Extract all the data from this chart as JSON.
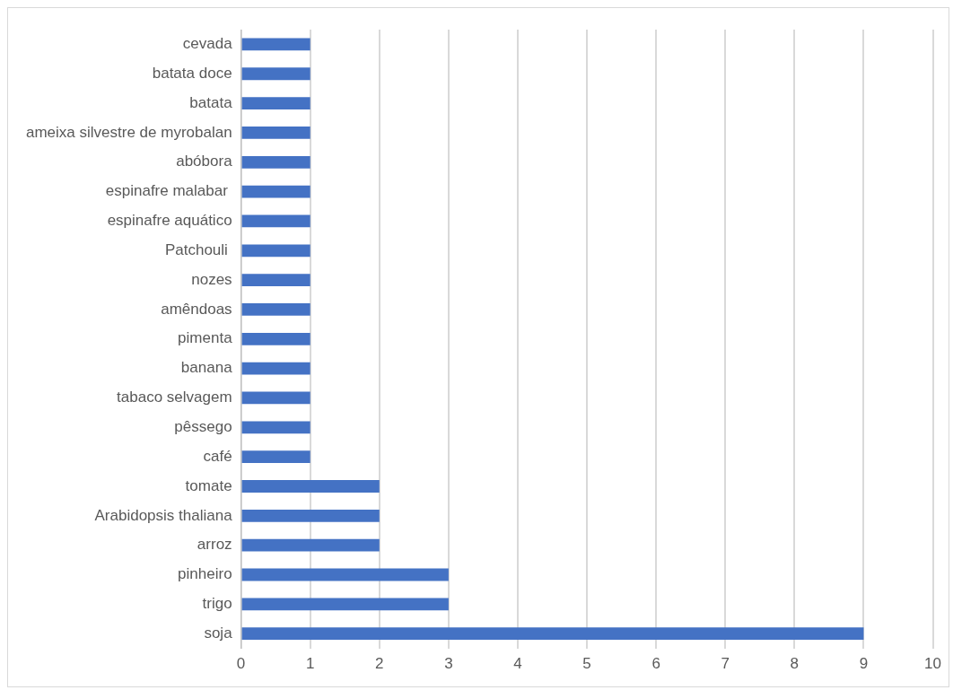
{
  "chart_data": {
    "type": "bar",
    "orientation": "horizontal",
    "categories": [
      "cevada",
      "batata doce",
      "batata",
      "ameixa silvestre de myrobalan",
      "abóbora",
      "espinafre malabar ",
      "espinafre aquático",
      "Patchouli ",
      "nozes",
      "amêndoas",
      "pimenta",
      "banana",
      "tabaco selvagem",
      "pêssego",
      "café",
      "tomate",
      "Arabidopsis thaliana",
      "arroz",
      "pinheiro",
      "trigo",
      "soja"
    ],
    "values": [
      1,
      1,
      1,
      1,
      1,
      1,
      1,
      1,
      1,
      1,
      1,
      1,
      1,
      1,
      1,
      2,
      2,
      2,
      3,
      3,
      9
    ],
    "color": "#4472c4",
    "xlim": [
      0,
      10
    ],
    "xticks": [
      0,
      1,
      2,
      3,
      4,
      5,
      6,
      7,
      8,
      9,
      10
    ],
    "grid": "x",
    "legend": false
  }
}
